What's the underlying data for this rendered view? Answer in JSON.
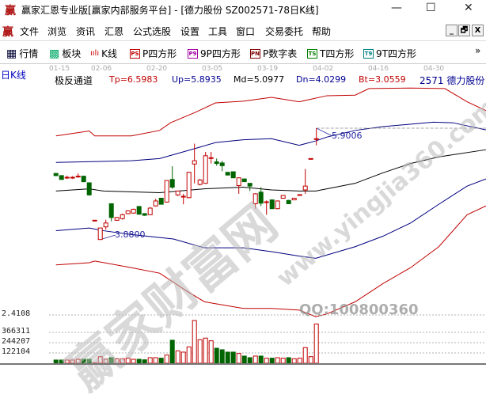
{
  "window": {
    "title": "赢家汇恩专业版[赢家内部服务平台] - [德力股份  SZ002571-78日K线]",
    "logo": "赢",
    "minimize": "—",
    "maximize": "☐",
    "close": "✕"
  },
  "menu": {
    "items": [
      "文件",
      "浏览",
      "资讯",
      "汇恩",
      "公式选股",
      "设置",
      "工具",
      "窗口",
      "交易委托",
      "帮助"
    ],
    "mdi_buttons": [
      "_",
      "🗗",
      "X"
    ]
  },
  "toolbar": {
    "items": [
      {
        "icon": "grid-table-icon",
        "glyph": "▦",
        "label": "行情"
      },
      {
        "icon": "blocks-icon",
        "glyph": "▩",
        "label": "板块"
      },
      {
        "icon": "candlestick-icon",
        "glyph": "ıılı",
        "label": "K线"
      },
      {
        "icon": "ps-icon",
        "glyph": "PS",
        "label": "P四方形",
        "color": "#c00000"
      },
      {
        "icon": "p9-icon",
        "glyph": "P9",
        "label": "9P四方形",
        "color": "#a000a0"
      },
      {
        "icon": "pn-icon",
        "glyph": "PN",
        "label": "P数字表",
        "color": "#800000"
      },
      {
        "icon": "ts-icon",
        "glyph": "TS",
        "label": "T四方形",
        "color": "#008000"
      },
      {
        "icon": "t9-icon",
        "glyph": "T9",
        "label": "9T四方形",
        "color": "#008080"
      }
    ],
    "more": "»"
  },
  "chart_header": {
    "period": "日K线",
    "dates": [
      "01-15",
      "02-06",
      "02-20",
      "03-05",
      "03-19",
      "04-02",
      "04-16",
      "04-30"
    ],
    "indicator": "极反通道",
    "tp": "Tp=6.5983",
    "up": "Up=5.8935",
    "md": "Md=5.0977",
    "dn": "Dn=4.0299",
    "bt": "Bt=3.0559",
    "stock": "2571  德力股份"
  },
  "colors": {
    "up": "#c00000",
    "down": "#006400",
    "band_outer": "#c00000",
    "band_inner": "#000080",
    "mid": "#000000"
  },
  "chart_data": {
    "type": "candlestick",
    "candles": [
      [
        5.08,
        5.04,
        5.08,
        5.03
      ],
      [
        5.04,
        4.97,
        5.05,
        4.97
      ],
      [
        5.0,
        5.01,
        5.04,
        4.98
      ],
      [
        5.0,
        5.01,
        5.03,
        4.98
      ],
      [
        5.02,
        5.03,
        5.08,
        5.0
      ],
      [
        5.03,
        4.93,
        5.03,
        4.92
      ],
      [
        4.91,
        4.69,
        4.91,
        4.675
      ],
      [
        4.23,
        4.23,
        4.23,
        4.23
      ],
      [
        3.88,
        4.09,
        4.09,
        3.88
      ],
      [
        4.11,
        4.18,
        4.24,
        4.06
      ],
      [
        4.53,
        4.28,
        4.53,
        4.21
      ],
      [
        4.23,
        4.28,
        4.29,
        4.22
      ],
      [
        4.26,
        4.33,
        4.35,
        4.24
      ],
      [
        4.35,
        4.4,
        4.41,
        4.34
      ],
      [
        4.36,
        4.43,
        4.44,
        4.35
      ],
      [
        4.48,
        4.34,
        4.48,
        4.33
      ],
      [
        4.35,
        4.32,
        4.36,
        4.31
      ],
      [
        4.33,
        4.45,
        4.47,
        4.32
      ],
      [
        4.49,
        4.58,
        4.62,
        4.48
      ],
      [
        4.63,
        4.52,
        4.63,
        4.52
      ],
      [
        4.56,
        4.95,
        4.95,
        4.55
      ],
      [
        4.97,
        4.83,
        5.21,
        4.8
      ],
      [
        4.69,
        4.76,
        4.77,
        4.67
      ],
      [
        4.66,
        4.665,
        4.71,
        4.52
      ],
      [
        4.64,
        5.1,
        5.11,
        4.63
      ],
      [
        5.25,
        5.31,
        5.62,
        4.9
      ],
      [
        4.88,
        4.96,
        4.98,
        4.86
      ],
      [
        4.9,
        5.4,
        5.47,
        4.89
      ],
      [
        5.36,
        5.365,
        5.47,
        5.26
      ],
      [
        5.29,
        5.26,
        5.35,
        5.22
      ],
      [
        5.27,
        5.22,
        5.31,
        5.12
      ],
      [
        5.1,
        5.05,
        5.1,
        5.05
      ],
      [
        5.11,
        5.0,
        5.11,
        5.0
      ],
      [
        4.86,
        5.0,
        5.01,
        4.71
      ],
      [
        4.98,
        4.93,
        4.98,
        4.93
      ],
      [
        4.9,
        4.85,
        4.9,
        4.76
      ],
      [
        4.53,
        4.71,
        4.72,
        4.44
      ],
      [
        4.74,
        4.54,
        4.83,
        4.49
      ],
      [
        4.56,
        4.565,
        4.59,
        4.33
      ],
      [
        4.6,
        4.44,
        4.6,
        4.44
      ],
      [
        4.44,
        4.58,
        4.59,
        4.43
      ],
      [
        4.63,
        4.68,
        4.69,
        4.62
      ],
      [
        4.59,
        4.53,
        4.6,
        4.53
      ],
      [
        4.6,
        4.63,
        4.64,
        4.6
      ],
      [
        4.69,
        4.695,
        4.7,
        4.68
      ],
      [
        4.78,
        4.85,
        5.16,
        4.71
      ],
      [
        5.35,
        5.35,
        5.35,
        5.35
      ],
      [
        5.7,
        5.71,
        5.9006,
        5.59
      ]
    ],
    "candle_fields": [
      "open",
      "close",
      "high",
      "low"
    ],
    "bands": {
      "Tp": [
        [
          0,
          5.76
        ],
        [
          6,
          5.85
        ],
        [
          7,
          5.76
        ],
        [
          13.6,
          5.76
        ],
        [
          18.7,
          5.86
        ],
        [
          20.7,
          6.0
        ],
        [
          25.2,
          6.19
        ],
        [
          28.8,
          6.36
        ],
        [
          33.8,
          6.39
        ],
        [
          38.9,
          6.46
        ],
        [
          43.9,
          6.38
        ],
        [
          48.9,
          6.49
        ],
        [
          54,
          6.5
        ],
        [
          56.5,
          6.62
        ],
        [
          64,
          6.63
        ],
        [
          70.2,
          6.62
        ],
        [
          74.2,
          6.38
        ],
        [
          77.6,
          6.22
        ]
      ],
      "Up": [
        [
          0,
          5.28
        ],
        [
          13.6,
          5.31
        ],
        [
          18.7,
          5.35
        ],
        [
          24.7,
          5.52
        ],
        [
          28.8,
          5.64
        ],
        [
          33.8,
          5.69
        ],
        [
          38.9,
          5.71
        ],
        [
          43.9,
          5.59
        ],
        [
          46.9,
          5.67
        ],
        [
          48.9,
          5.74
        ],
        [
          54,
          5.86
        ],
        [
          59,
          5.93
        ],
        [
          68.1,
          6.01
        ],
        [
          71.6,
          6.0
        ],
        [
          77.6,
          5.87
        ]
      ],
      "Md": [
        [
          0,
          4.76
        ],
        [
          6,
          4.8
        ],
        [
          8.6,
          4.76
        ],
        [
          18.7,
          4.73
        ],
        [
          26.8,
          4.8
        ],
        [
          33.8,
          4.83
        ],
        [
          38.9,
          4.78
        ],
        [
          43.9,
          4.76
        ],
        [
          46.9,
          4.76
        ],
        [
          54,
          4.9
        ],
        [
          59,
          5.09
        ],
        [
          64,
          5.26
        ],
        [
          69.1,
          5.38
        ],
        [
          77.6,
          5.51
        ]
      ],
      "Dn": [
        [
          0,
          4.04
        ],
        [
          6,
          4.09
        ],
        [
          8.6,
          4.04
        ],
        [
          13.6,
          3.97
        ],
        [
          21.2,
          3.89
        ],
        [
          26.8,
          3.73
        ],
        [
          33.8,
          3.73
        ],
        [
          38.9,
          3.66
        ],
        [
          43.9,
          3.58
        ],
        [
          46.9,
          3.54
        ],
        [
          54,
          3.75
        ],
        [
          59,
          3.94
        ],
        [
          64,
          4.18
        ],
        [
          69.1,
          4.52
        ],
        [
          74.2,
          4.85
        ],
        [
          77.6,
          4.98
        ]
      ],
      "Bt": [
        [
          0,
          3.42
        ],
        [
          6,
          3.46
        ],
        [
          7,
          3.49
        ],
        [
          13.6,
          3.37
        ],
        [
          18.7,
          3.27
        ],
        [
          23.7,
          2.94
        ],
        [
          26.8,
          2.75
        ],
        [
          33.8,
          2.63
        ],
        [
          38.9,
          2.63
        ],
        [
          43.9,
          2.6
        ],
        [
          46.9,
          2.48
        ],
        [
          48.9,
          2.53
        ],
        [
          54,
          2.75
        ],
        [
          59,
          3.08
        ],
        [
          64,
          3.37
        ],
        [
          69.1,
          3.75
        ],
        [
          74.2,
          4.33
        ],
        [
          77.6,
          4.49
        ]
      ]
    },
    "price_labels": {
      "low": "3.8800",
      "high": "5.9006"
    },
    "volume": {
      "values": [
        38,
        38,
        38,
        38,
        47,
        47,
        47,
        6,
        78,
        47,
        66,
        53,
        53,
        60,
        47,
        47,
        41,
        66,
        66,
        60,
        97,
        273,
        147,
        132,
        194,
        507,
        279,
        298,
        266,
        178,
        160,
        132,
        132,
        116,
        85,
        66,
        85,
        85,
        60,
        60,
        66,
        60,
        66,
        53,
        60,
        185,
        78,
        466
      ],
      "unit": "thousand",
      "ticks": [
        "2.4108",
        "366311",
        "244207",
        "122104"
      ],
      "tick_values": [
        null,
        366311,
        244207,
        122104
      ]
    }
  },
  "watermark": {
    "brand": "赢家财富网",
    "url": "www.yingjia360.com",
    "qq": "QQ:100800360"
  }
}
